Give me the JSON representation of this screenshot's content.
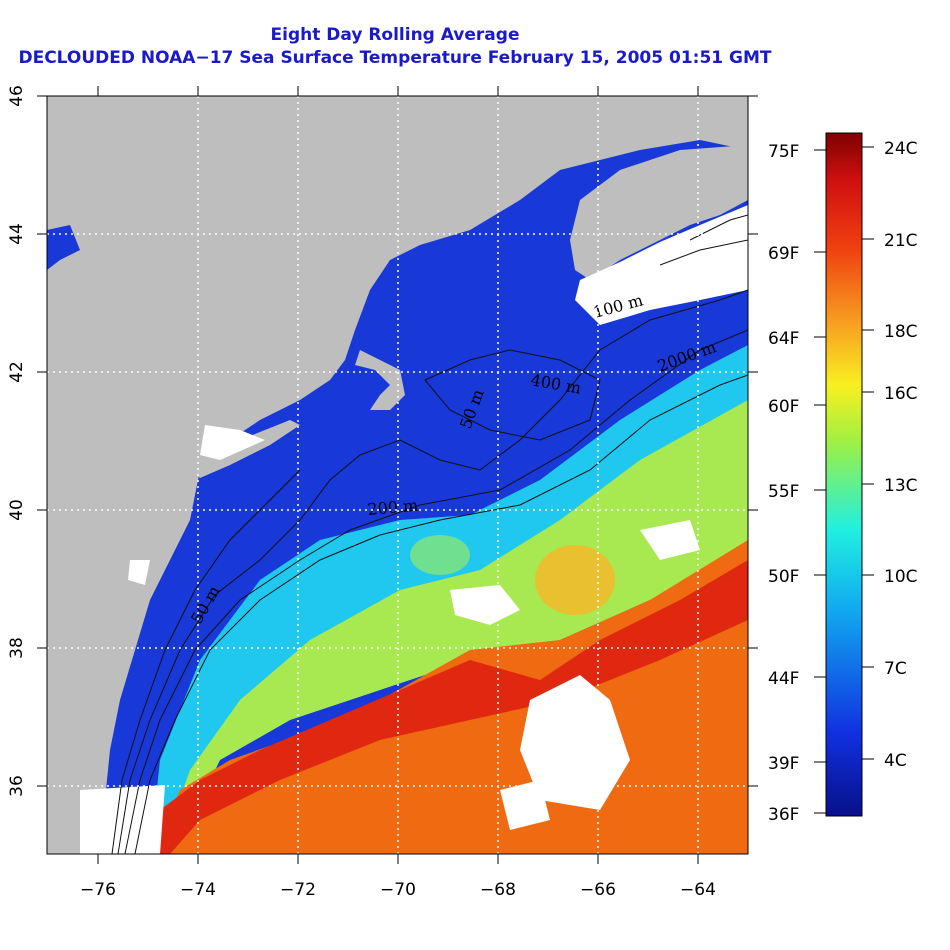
{
  "title_line1": "Eight Day Rolling Average",
  "title_line2": "DECLOUDED NOAA−17 Sea Surface Temperature February 15, 2005 01:51 GMT",
  "x_ticks": [
    "−76",
    "−74",
    "−72",
    "−70",
    "−68",
    "−66",
    "−64"
  ],
  "y_ticks": [
    "36",
    "38",
    "40",
    "42",
    "44",
    "46"
  ],
  "fahrenheit_labels": [
    "75F",
    "69F",
    "64F",
    "60F",
    "55F",
    "50F",
    "44F",
    "39F",
    "36F"
  ],
  "celsius_labels": [
    "24C",
    "21C",
    "18C",
    "16C",
    "13C",
    "10C",
    "7C",
    "4C"
  ],
  "contour_labels": [
    "100 m",
    "2000 m",
    "400 m",
    "50 m",
    "200 m",
    "50 m"
  ],
  "colors": {
    "land": "#bebebe",
    "cold": "#1030c8",
    "cool": "#20c8f0",
    "mid": "#b8ec40",
    "warm": "#f26a10",
    "hot": "#e02010",
    "title": "#1a1acc"
  }
}
